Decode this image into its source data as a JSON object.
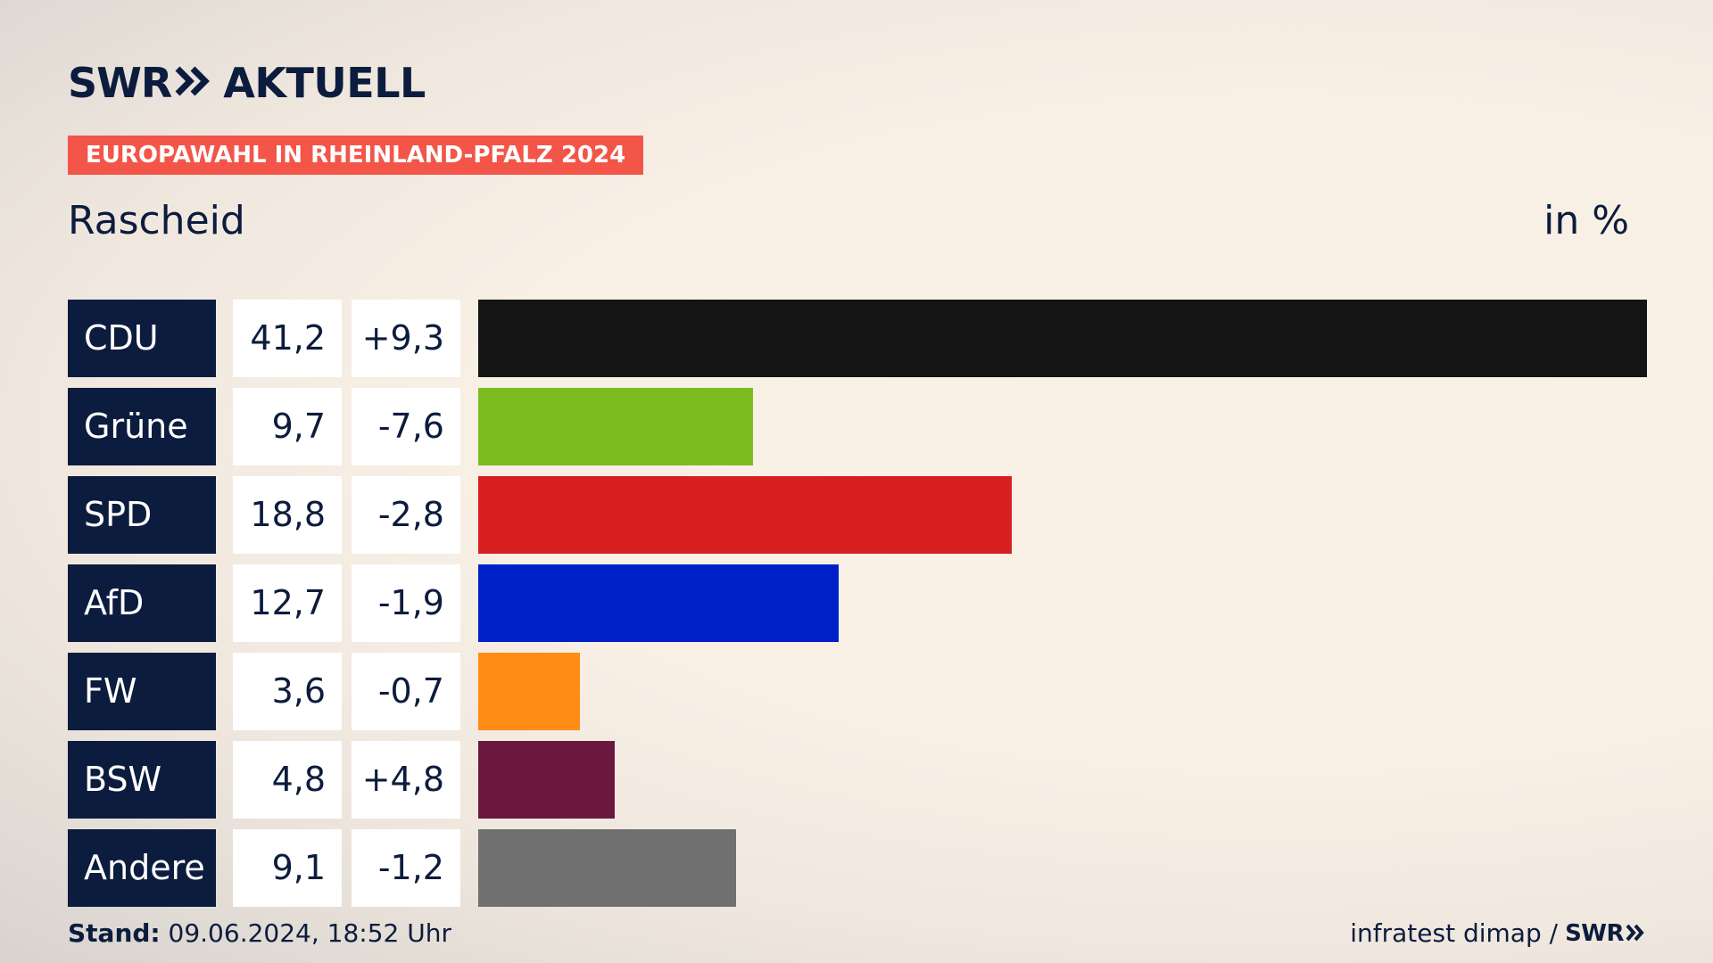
{
  "header": {
    "logo_brand": "SWR",
    "logo_section": "AKTUELL",
    "banner": "EUROPAWAHL IN RHEINLAND-PFALZ 2024",
    "place": "Rascheid",
    "unit": "in %"
  },
  "colors": {
    "navy": "#0c1c3e",
    "banner": "#f35549"
  },
  "chart_data": {
    "type": "bar",
    "orientation": "horizontal",
    "categories": [
      "CDU",
      "Grüne",
      "SPD",
      "AfD",
      "FW",
      "BSW",
      "Andere"
    ],
    "values": [
      41.2,
      9.7,
      18.8,
      12.7,
      3.6,
      4.8,
      9.1
    ],
    "value_labels": [
      "41,2",
      "9,7",
      "18,8",
      "12,7",
      "3,6",
      "4,8",
      "9,1"
    ],
    "diff_labels": [
      "+9,3",
      "-7,6",
      "-2,8",
      "-1,9",
      "-0,7",
      "+4,8",
      "-1,2"
    ],
    "bar_colors": [
      "#141414",
      "#7bbd1e",
      "#d71f1f",
      "#0021c8",
      "#ff8c14",
      "#6a1840",
      "#707070"
    ],
    "xlim": [
      0,
      41.2
    ],
    "ylabel": "in %"
  },
  "footer": {
    "stand_label": "Stand:",
    "stand_value": "09.06.2024, 18:52 Uhr",
    "source": "infratest dimap /",
    "source_brand": "SWR"
  }
}
